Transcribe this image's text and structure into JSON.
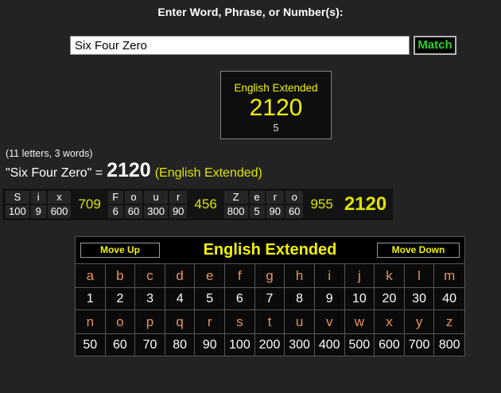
{
  "colors": {
    "page-bg": "#232323",
    "panel-bg": "#0e0e0e",
    "strip-bg": "#131313",
    "cell-bg": "#262626",
    "table-bg": "#0a0a0a",
    "border-gray": "#565656",
    "yellow": "#f2f200",
    "yellow-green": "#dde300",
    "orange": "#e8925a",
    "green": "#2bd42b"
  },
  "header": {
    "title": "Enter Word, Phrase, or Number(s):"
  },
  "search": {
    "value": "Six Four Zero",
    "match_label": "Match"
  },
  "result_box": {
    "cipher": "English Extended",
    "value": "2120",
    "sub_count": "5"
  },
  "summary": {
    "text": "(11 letters, 3 words)"
  },
  "equation": {
    "phrase": "\"Six Four Zero\" =",
    "value": "2120",
    "cipher_note": "(English Extended)"
  },
  "breakdown": {
    "words": [
      {
        "letters": [
          "S",
          "i",
          "x"
        ],
        "values": [
          "100",
          "9",
          "600"
        ],
        "sum": "709"
      },
      {
        "letters": [
          "F",
          "o",
          "u",
          "r"
        ],
        "values": [
          "6",
          "60",
          "300",
          "90"
        ],
        "sum": "456"
      },
      {
        "letters": [
          "Z",
          "e",
          "r",
          "o"
        ],
        "values": [
          "800",
          "5",
          "90",
          "60"
        ],
        "sum": "955"
      }
    ],
    "total": "2120"
  },
  "cipher_table": {
    "move_up_label": "Move Up",
    "title": "English Extended",
    "move_down_label": "Move Down",
    "rows": [
      [
        "a",
        "b",
        "c",
        "d",
        "e",
        "f",
        "g",
        "h",
        "i",
        "j",
        "k",
        "l",
        "m"
      ],
      [
        "1",
        "2",
        "3",
        "4",
        "5",
        "6",
        "7",
        "8",
        "9",
        "10",
        "20",
        "30",
        "40"
      ],
      [
        "n",
        "o",
        "p",
        "q",
        "r",
        "s",
        "t",
        "u",
        "v",
        "w",
        "x",
        "y",
        "z"
      ],
      [
        "50",
        "60",
        "70",
        "80",
        "90",
        "100",
        "200",
        "300",
        "400",
        "500",
        "600",
        "700",
        "800"
      ]
    ]
  }
}
